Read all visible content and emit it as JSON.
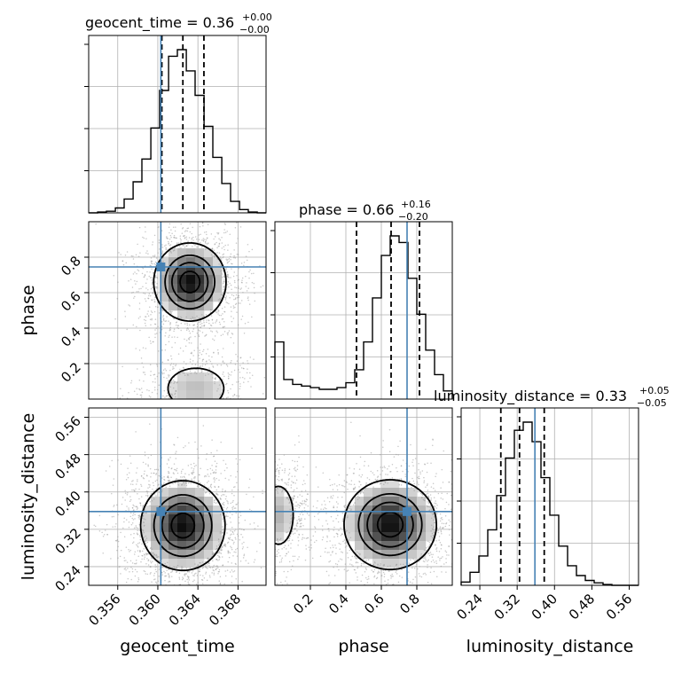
{
  "chart_data": {
    "type": "corner",
    "parameters": [
      "geocent_time",
      "phase",
      "luminosity_distance"
    ],
    "titles": [
      {
        "param": "geocent_time",
        "text": "geocent_time = 0.36",
        "sup": "+0.00",
        "sub": "−0.00"
      },
      {
        "param": "phase",
        "text": "phase = 0.66",
        "sup": "+0.16",
        "sub": "−0.20"
      },
      {
        "param": "luminosity_distance",
        "text": "luminosity_distance = 0.33",
        "sup": "+0.05",
        "sub": "−0.05"
      }
    ],
    "ranges": {
      "geocent_time": [
        0.3531,
        0.3708
      ],
      "phase": [
        0.0,
        1.0
      ],
      "luminosity_distance": [
        0.2,
        0.58
      ]
    },
    "ticks": {
      "geocent_time": [
        0.356,
        0.36,
        0.364,
        0.368
      ],
      "phase": [
        0.2,
        0.4,
        0.6,
        0.8
      ],
      "luminosity_distance": [
        0.24,
        0.32,
        0.4,
        0.48,
        0.56
      ]
    },
    "tick_labels": {
      "geocent_time": [
        "0.356",
        "0.360",
        "0.364",
        "0.368"
      ],
      "phase": [
        "0.2",
        "0.4",
        "0.6",
        "0.8"
      ],
      "luminosity_distance": [
        "0.24",
        "0.32",
        "0.40",
        "0.48",
        "0.56"
      ]
    },
    "truths": {
      "geocent_time": 0.3603,
      "phase": 0.745,
      "luminosity_distance": 0.358
    },
    "quantiles": {
      "geocent_time": [
        0.3604,
        0.3625,
        0.3646
      ],
      "phase": [
        0.46,
        0.655,
        0.815
      ],
      "luminosity_distance": [
        0.285,
        0.325,
        0.378
      ]
    },
    "histograms": {
      "geocent_time": {
        "edges": [
          0.3531,
          0.35399,
          0.35487,
          0.35576,
          0.35664,
          0.35753,
          0.35841,
          0.3593,
          0.36018,
          0.36107,
          0.36195,
          0.36284,
          0.36372,
          0.36461,
          0.36549,
          0.36638,
          0.36726,
          0.36815,
          0.36903,
          0.36992,
          0.3708
        ],
        "counts": [
          0.0,
          0.5,
          1.0,
          3.0,
          8.5,
          19.0,
          33.0,
          52.0,
          75.0,
          96.0,
          100.0,
          87.0,
          72.0,
          53.0,
          34.0,
          18.0,
          7.0,
          2.0,
          0.5,
          0.0
        ]
      },
      "phase": {
        "edges": [
          0.0,
          0.05,
          0.1,
          0.15,
          0.2,
          0.25,
          0.3,
          0.35,
          0.4,
          0.45,
          0.5,
          0.55,
          0.6,
          0.65,
          0.7,
          0.75,
          0.8,
          0.85,
          0.9,
          0.95,
          1.0
        ],
        "counts": [
          35.0,
          12.0,
          9.0,
          8.0,
          7.0,
          6.0,
          6.0,
          7.0,
          10.0,
          18.0,
          35.0,
          62.0,
          88.0,
          100.0,
          96.0,
          74.0,
          52.0,
          30.0,
          15.0,
          5.0
        ]
      },
      "luminosity_distance": {
        "edges": [
          0.2,
          0.219,
          0.238,
          0.257,
          0.276,
          0.295,
          0.314,
          0.333,
          0.352,
          0.371,
          0.39,
          0.409,
          0.428,
          0.447,
          0.466,
          0.485,
          0.504,
          0.523,
          0.542,
          0.561,
          0.58
        ],
        "counts": [
          2.0,
          8.0,
          18.0,
          34.0,
          55.0,
          78.0,
          95.0,
          100.0,
          88.0,
          66.0,
          43.0,
          24.0,
          12.0,
          6.0,
          3.0,
          1.5,
          0.5,
          0.0,
          0.0,
          0.0
        ]
      }
    },
    "posterior_2d": {
      "geocent_time__phase": {
        "modes": [
          {
            "x": 0.3632,
            "y": 0.66,
            "sx": 0.0018,
            "sy": 0.11,
            "w": 1.0
          },
          {
            "x": 0.3638,
            "y": 0.06,
            "sx": 0.0022,
            "sy": 0.09,
            "w": 0.3
          }
        ]
      },
      "geocent_time__luminosity_distance": {
        "modes": [
          {
            "x": 0.3625,
            "y": 0.328,
            "sx": 0.0021,
            "sy": 0.048,
            "w": 1.0
          }
        ]
      },
      "phase__luminosity_distance": {
        "modes": [
          {
            "x": 0.65,
            "y": 0.33,
            "sx": 0.13,
            "sy": 0.048,
            "w": 1.0
          },
          {
            "x": 0.02,
            "y": 0.35,
            "sx": 0.06,
            "sy": 0.045,
            "w": 0.35
          }
        ]
      }
    },
    "grid": true,
    "truth_color": "#4682b4",
    "hist_color": "#000000",
    "scatter_color": "#9a9a9a"
  }
}
